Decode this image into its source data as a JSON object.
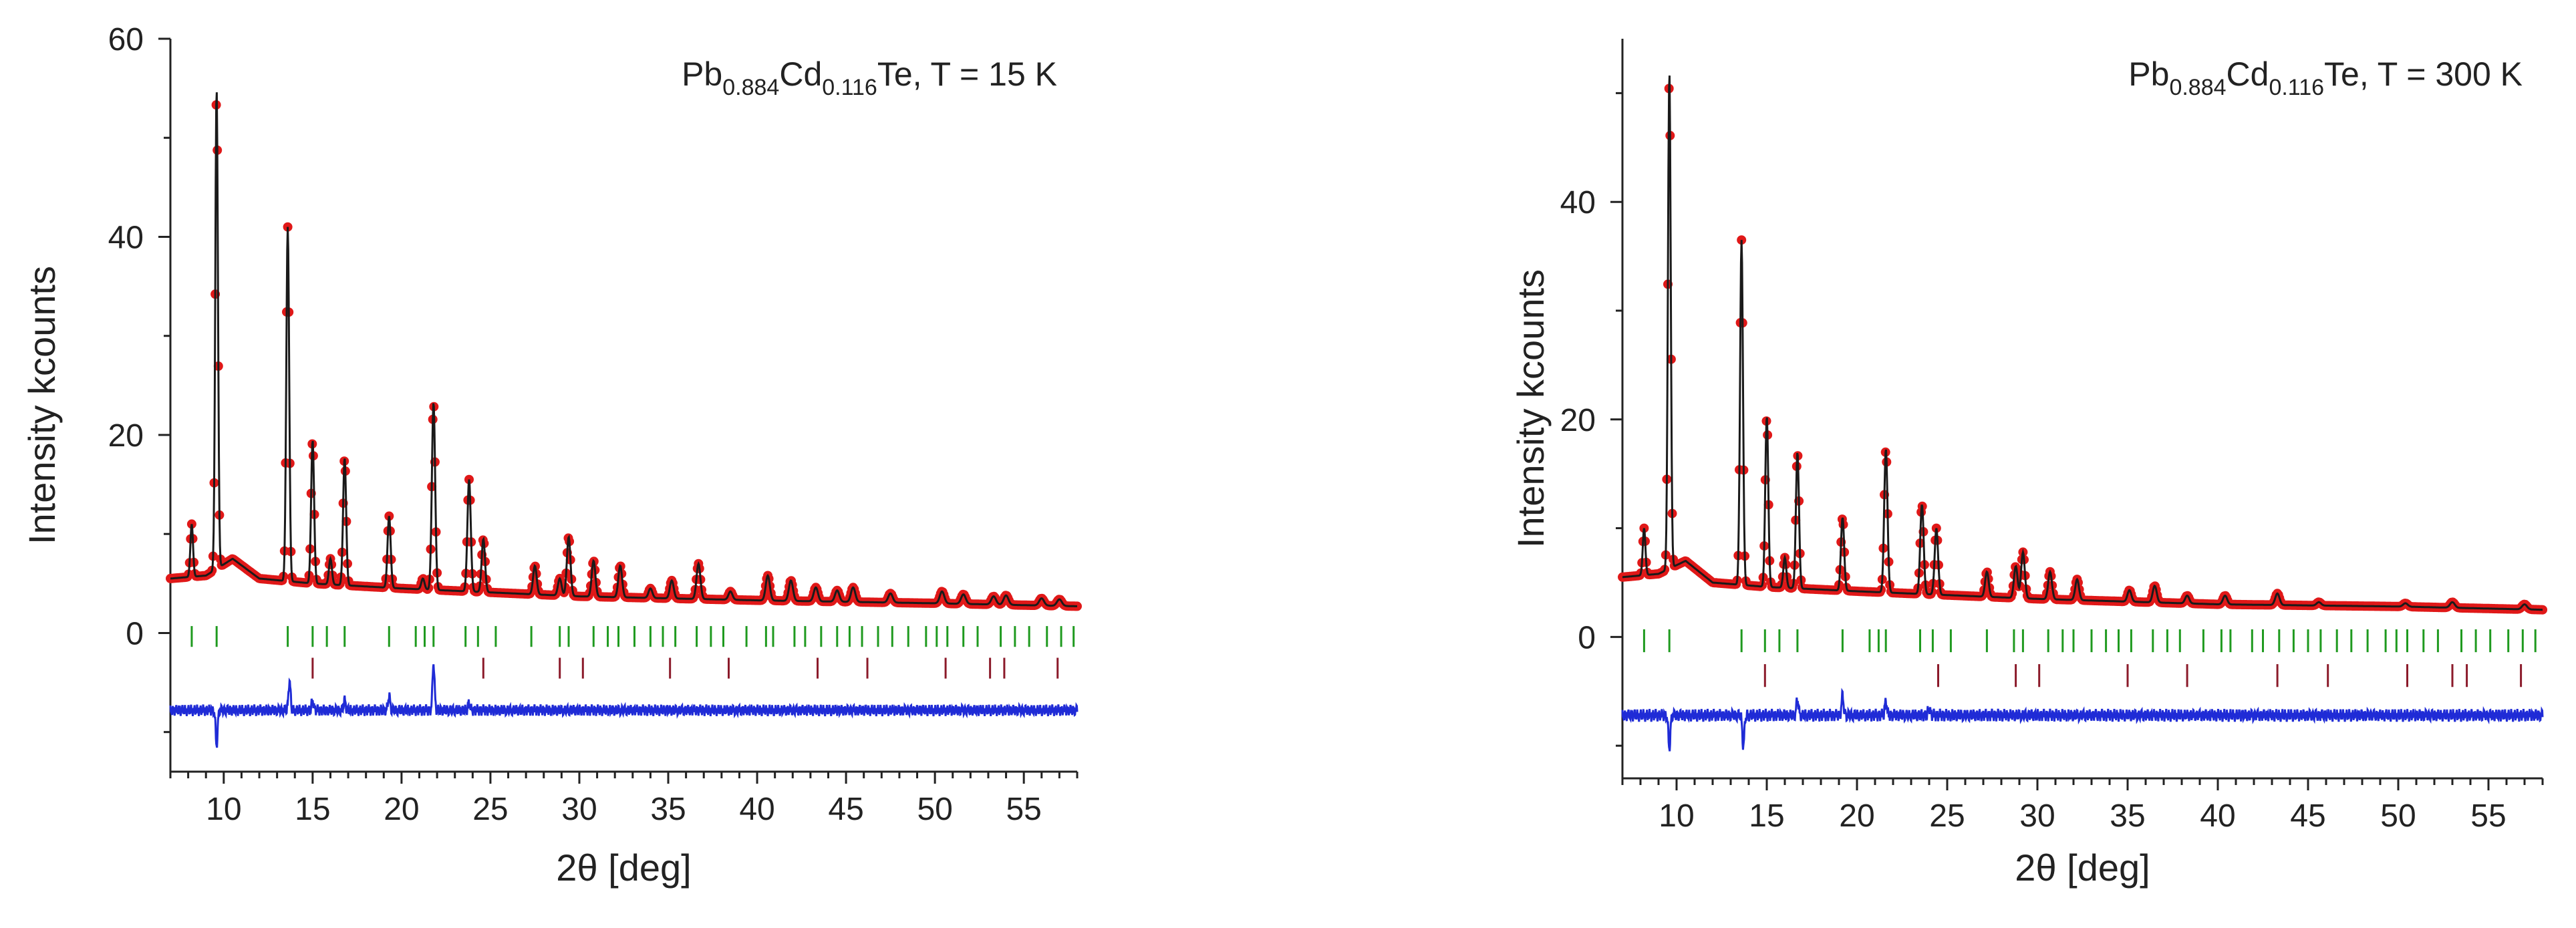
{
  "colors": {
    "observed": "#e01818",
    "calculated": "#1a1a1a",
    "difference": "#1f2bd6",
    "reflections_phase1": "#1f9a1f",
    "reflections_phase2": "#8b1a2a",
    "axis": "#222222"
  },
  "chart_data": [
    {
      "type": "line",
      "title": "",
      "annotation": {
        "formula_parts": [
          "Pb",
          "0.884",
          "Cd",
          "0.116",
          "Te"
        ],
        "suffix": ", T = 15 K"
      },
      "xlabel": "2θ [deg]",
      "ylabel": "Intensity kcounts",
      "xlim": [
        7,
        58
      ],
      "ylim": [
        -14,
        60
      ],
      "xticks": [
        10,
        15,
        20,
        25,
        30,
        35,
        40,
        45,
        50,
        55
      ],
      "yticks": [
        0,
        20,
        40,
        60
      ],
      "background": [
        [
          7,
          5.5
        ],
        [
          9,
          5.8
        ],
        [
          10.5,
          7.5
        ],
        [
          12,
          5.5
        ],
        [
          15,
          5.0
        ],
        [
          20,
          4.5
        ],
        [
          30,
          3.7
        ],
        [
          40,
          3.3
        ],
        [
          50,
          3.0
        ],
        [
          58,
          2.7
        ]
      ],
      "peaks": [
        [
          8.2,
          11
        ],
        [
          9.6,
          55
        ],
        [
          13.6,
          41
        ],
        [
          15.0,
          19.5
        ],
        [
          16.0,
          7.5
        ],
        [
          16.8,
          17.7
        ],
        [
          19.3,
          11.8
        ],
        [
          21.2,
          5.5
        ],
        [
          21.8,
          23.3
        ],
        [
          23.8,
          15.5
        ],
        [
          24.6,
          9.5
        ],
        [
          27.5,
          6.8
        ],
        [
          28.9,
          5.5
        ],
        [
          29.4,
          9.7
        ],
        [
          30.8,
          7.3
        ],
        [
          32.3,
          6.8
        ],
        [
          34.0,
          4.5
        ],
        [
          35.2,
          5.3
        ],
        [
          36.7,
          7.0
        ],
        [
          38.5,
          4.2
        ],
        [
          40.6,
          5.8
        ],
        [
          41.9,
          5.3
        ],
        [
          43.3,
          4.6
        ],
        [
          44.5,
          4.3
        ],
        [
          45.4,
          4.6
        ],
        [
          47.5,
          4.0
        ],
        [
          50.4,
          4.2
        ],
        [
          51.6,
          3.9
        ],
        [
          53.3,
          3.7
        ],
        [
          54.0,
          3.8
        ],
        [
          56.0,
          3.5
        ],
        [
          57.0,
          3.4
        ]
      ],
      "difference_baseline": -7.8,
      "difference_features": [
        [
          9.6,
          -3.5
        ],
        [
          13.7,
          3.0
        ],
        [
          15.0,
          1.0
        ],
        [
          16.8,
          1.0
        ],
        [
          19.3,
          1.5
        ],
        [
          21.8,
          4.8
        ],
        [
          23.8,
          0.7
        ]
      ],
      "reflections_phase1": [
        8.2,
        9.6,
        13.6,
        15.0,
        15.8,
        16.8,
        19.3,
        20.8,
        21.3,
        21.8,
        23.6,
        24.3,
        25.3,
        27.3,
        28.9,
        29.4,
        30.8,
        31.6,
        32.2,
        33.1,
        34.0,
        34.7,
        35.4,
        36.6,
        37.4,
        38.1,
        39.4,
        40.5,
        40.9,
        42.1,
        42.7,
        43.6,
        44.5,
        45.2,
        45.9,
        46.8,
        47.6,
        48.5,
        49.5,
        50.1,
        50.7,
        51.6,
        52.4,
        53.7,
        54.5,
        55.3,
        56.3,
        57.1,
        57.8
      ],
      "reflections_phase2": [
        15.0,
        24.6,
        28.9,
        30.2,
        35.1,
        38.4,
        43.4,
        46.2,
        50.6,
        53.1,
        53.9,
        56.9
      ]
    },
    {
      "type": "line",
      "title": "",
      "annotation": {
        "formula_parts": [
          "Pb",
          "0.884",
          "Cd",
          "0.116",
          "Te"
        ],
        "suffix": ", T = 300 K"
      },
      "xlabel": "2θ [deg]",
      "ylabel": "Intensity kcounts",
      "xlim": [
        7,
        58
      ],
      "ylim": [
        -13,
        55
      ],
      "xticks": [
        10,
        15,
        20,
        25,
        30,
        35,
        40,
        45,
        50,
        55
      ],
      "yticks": [
        0,
        20,
        40
      ],
      "background": [
        [
          7,
          5.5
        ],
        [
          9,
          5.8
        ],
        [
          10.5,
          7.0
        ],
        [
          12,
          5.0
        ],
        [
          15,
          4.6
        ],
        [
          20,
          4.2
        ],
        [
          30,
          3.5
        ],
        [
          40,
          3.0
        ],
        [
          50,
          2.8
        ],
        [
          58,
          2.5
        ]
      ],
      "peaks": [
        [
          8.2,
          10
        ],
        [
          9.6,
          52
        ],
        [
          13.6,
          36.5
        ],
        [
          15.0,
          20.3
        ],
        [
          16.0,
          7.3
        ],
        [
          16.7,
          17.0
        ],
        [
          19.2,
          11.0
        ],
        [
          21.6,
          17.3
        ],
        [
          23.6,
          12.2
        ],
        [
          24.4,
          10.0
        ],
        [
          27.2,
          6.0
        ],
        [
          28.8,
          6.5
        ],
        [
          29.2,
          7.8
        ],
        [
          30.7,
          6.0
        ],
        [
          32.2,
          5.3
        ],
        [
          35.1,
          4.3
        ],
        [
          36.5,
          4.7
        ],
        [
          38.3,
          3.8
        ],
        [
          40.4,
          3.8
        ],
        [
          43.3,
          4.0
        ],
        [
          45.6,
          3.2
        ],
        [
          50.4,
          3.1
        ],
        [
          53.0,
          3.2
        ],
        [
          57.0,
          3.0
        ]
      ],
      "difference_baseline": -7.2,
      "difference_features": [
        [
          9.6,
          -3.0
        ],
        [
          13.7,
          -2.8
        ],
        [
          16.7,
          1.5
        ],
        [
          19.2,
          1.8
        ],
        [
          21.6,
          1.3
        ],
        [
          24.0,
          0.7
        ]
      ],
      "reflections_phase1": [
        8.2,
        9.6,
        13.6,
        14.9,
        15.7,
        16.7,
        19.2,
        20.7,
        21.2,
        21.6,
        23.5,
        24.2,
        25.2,
        27.2,
        28.7,
        29.2,
        30.6,
        31.4,
        32.0,
        33.0,
        33.8,
        34.5,
        35.2,
        36.4,
        37.2,
        37.9,
        39.2,
        40.2,
        40.7,
        41.9,
        42.5,
        43.4,
        44.2,
        45.0,
        45.7,
        46.6,
        47.4,
        48.3,
        49.3,
        49.9,
        50.5,
        51.4,
        52.2,
        53.5,
        54.3,
        55.1,
        56.1,
        56.9,
        57.6
      ],
      "reflections_phase2": [
        14.9,
        24.5,
        28.8,
        30.1,
        35.0,
        38.3,
        43.3,
        46.1,
        50.5,
        53.0,
        53.8,
        56.8
      ]
    }
  ]
}
